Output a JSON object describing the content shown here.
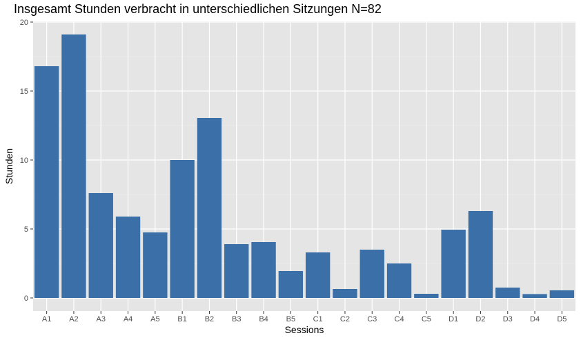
{
  "chart_data": {
    "type": "bar",
    "title": "Insgesamt Stunden verbracht in unterschiedlichen Sitzungen N=82",
    "xlabel": "Sessions",
    "ylabel": "Stunden",
    "categories": [
      "A1",
      "A2",
      "A3",
      "A4",
      "A5",
      "B1",
      "B2",
      "B3",
      "B4",
      "B5",
      "C1",
      "C2",
      "C3",
      "C4",
      "C5",
      "D1",
      "D2",
      "D3",
      "D4",
      "D5"
    ],
    "values": [
      16.8,
      19.1,
      7.6,
      5.9,
      4.75,
      10.0,
      13.05,
      3.9,
      4.05,
      1.95,
      3.3,
      0.65,
      3.5,
      2.5,
      0.3,
      4.95,
      6.3,
      0.75,
      0.28,
      0.55
    ],
    "yticks": [
      0,
      5,
      10,
      15,
      20
    ],
    "ylim": [
      -0.95,
      20.05
    ],
    "grid": true,
    "colors": {
      "bar": "#3a6fa8",
      "panel": "#e5e5e5",
      "grid_major": "#ffffff",
      "grid_minor": "#f0f0f0"
    }
  }
}
